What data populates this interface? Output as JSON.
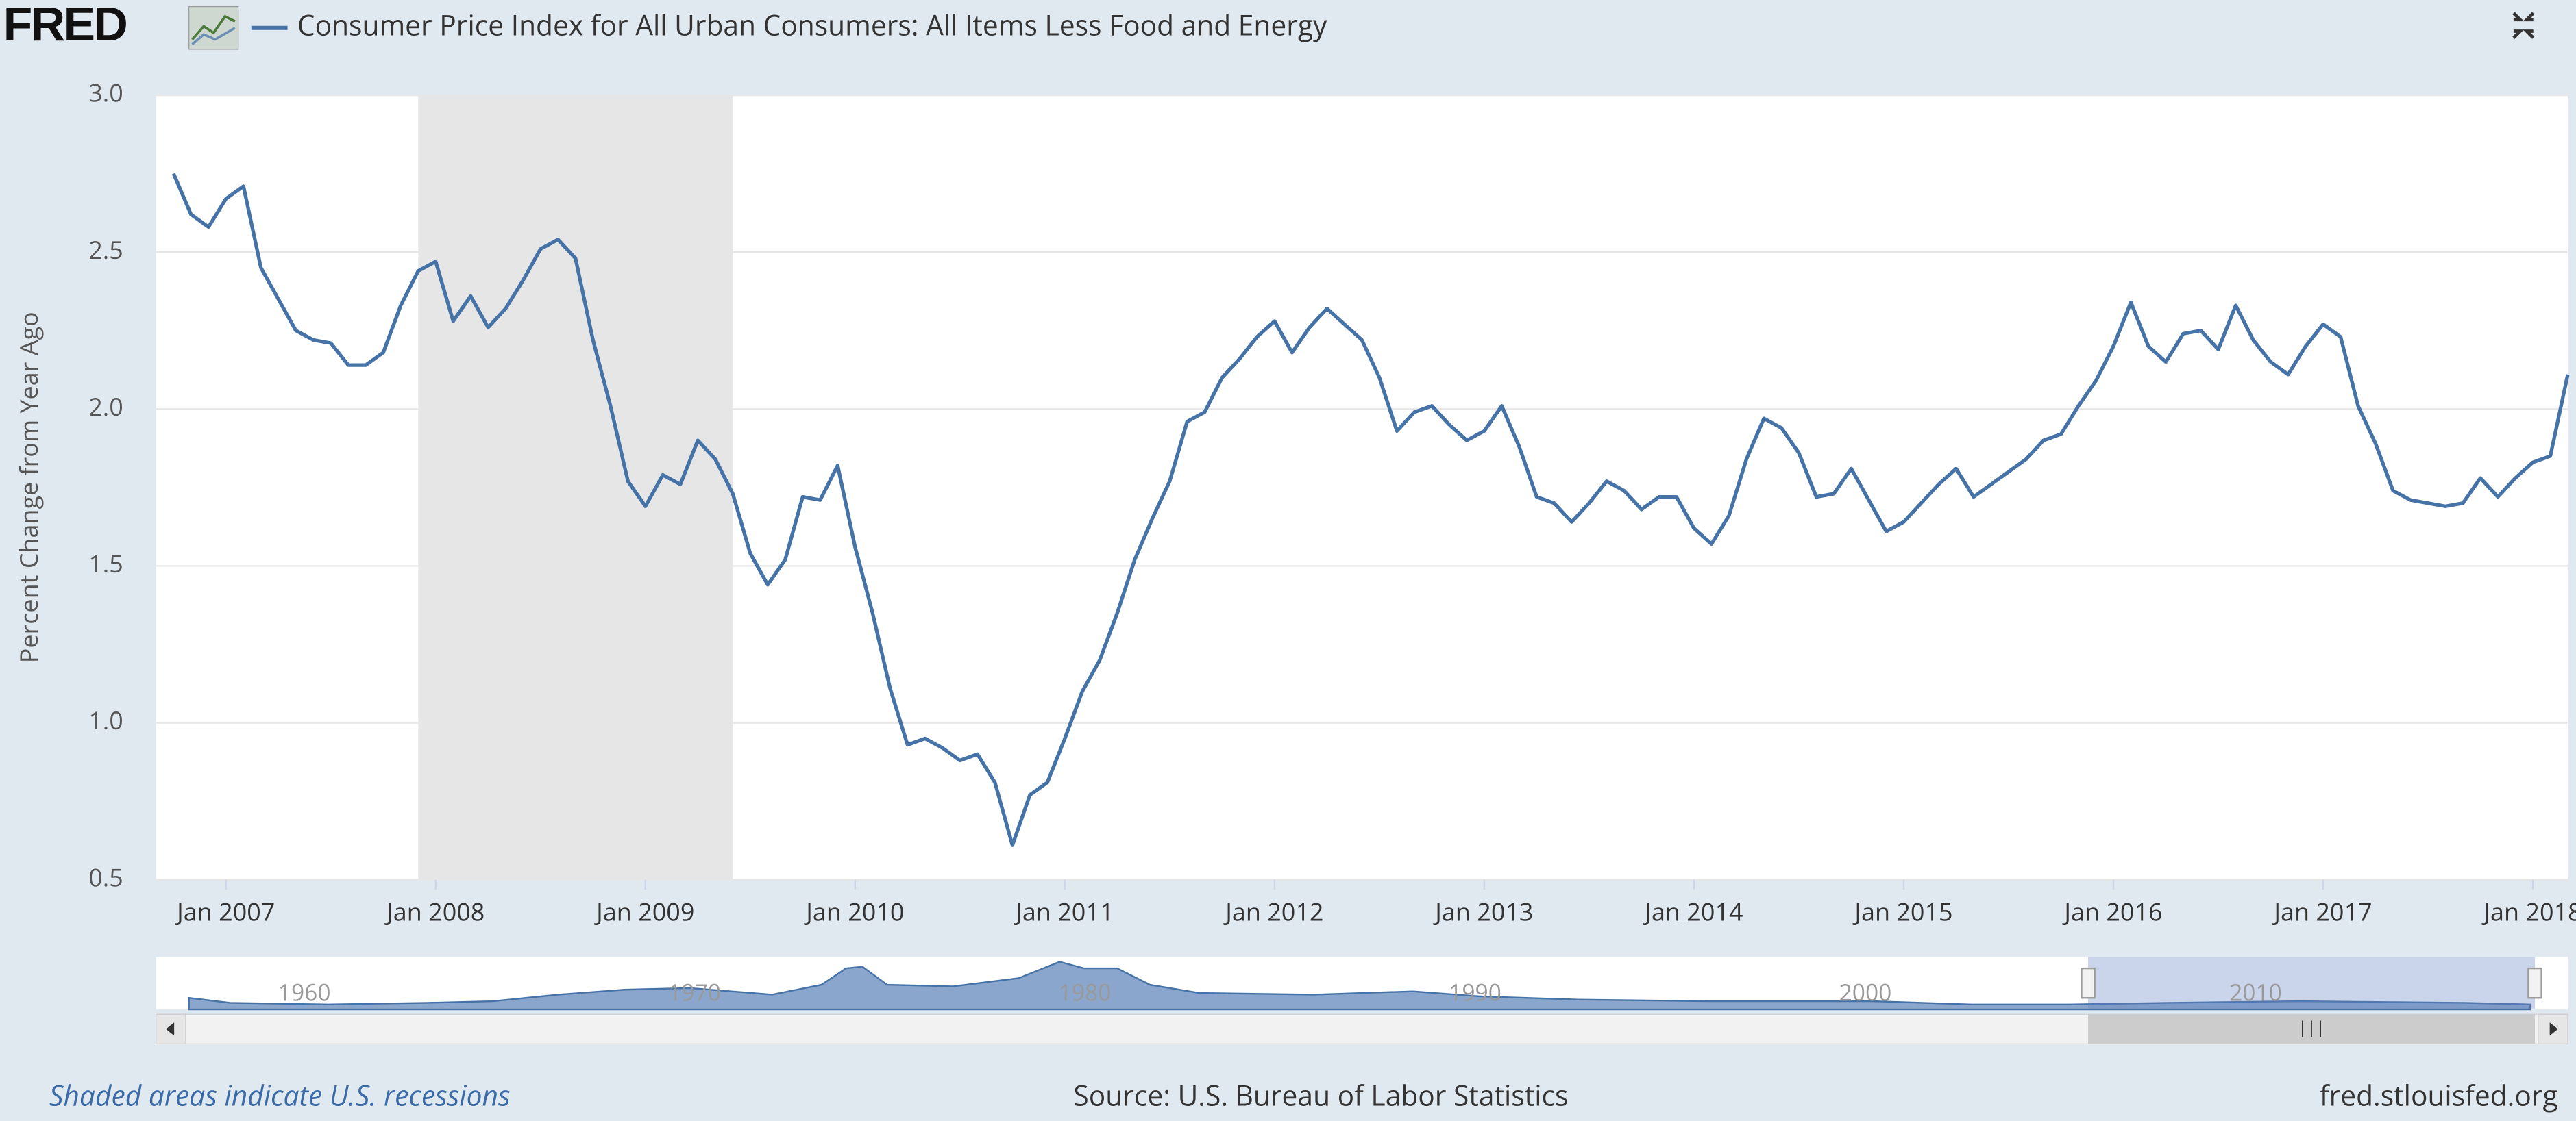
{
  "logo": "FRED",
  "footer": {
    "note": "Shaded areas indicate U.S. recessions",
    "source": "Source: U.S. Bureau of Labor Statistics",
    "site": "fred.stlouisfed.org"
  },
  "chart_data": {
    "type": "line",
    "y_label": "Percent Change from Year Ago",
    "x": [
      "2006-10",
      "2006-11",
      "2006-12",
      "2007-01",
      "2007-02",
      "2007-03",
      "2007-04",
      "2007-05",
      "2007-06",
      "2007-07",
      "2007-08",
      "2007-09",
      "2007-10",
      "2007-11",
      "2007-12",
      "2008-01",
      "2008-02",
      "2008-03",
      "2008-04",
      "2008-05",
      "2008-06",
      "2008-07",
      "2008-08",
      "2008-09",
      "2008-10",
      "2008-11",
      "2008-12",
      "2009-01",
      "2009-02",
      "2009-03",
      "2009-04",
      "2009-05",
      "2009-06",
      "2009-07",
      "2009-08",
      "2009-09",
      "2009-10",
      "2009-11",
      "2009-12",
      "2010-01",
      "2010-02",
      "2010-03",
      "2010-04",
      "2010-05",
      "2010-06",
      "2010-07",
      "2010-08",
      "2010-09",
      "2010-10",
      "2010-11",
      "2010-12",
      "2011-01",
      "2011-02",
      "2011-03",
      "2011-04",
      "2011-05",
      "2011-06",
      "2011-07",
      "2011-08",
      "2011-09",
      "2011-10",
      "2011-11",
      "2011-12",
      "2012-01",
      "2012-02",
      "2012-03",
      "2012-04",
      "2012-05",
      "2012-06",
      "2012-07",
      "2012-08",
      "2012-09",
      "2012-10",
      "2012-11",
      "2012-12",
      "2013-01",
      "2013-02",
      "2013-03",
      "2013-04",
      "2013-05",
      "2013-06",
      "2013-07",
      "2013-08",
      "2013-09",
      "2013-10",
      "2013-11",
      "2013-12",
      "2014-01",
      "2014-02",
      "2014-03",
      "2014-04",
      "2014-05",
      "2014-06",
      "2014-07",
      "2014-08",
      "2014-09",
      "2014-10",
      "2014-11",
      "2014-12",
      "2015-01",
      "2015-02",
      "2015-03",
      "2015-04",
      "2015-05",
      "2015-06",
      "2015-07",
      "2015-08",
      "2015-09",
      "2015-10",
      "2015-11",
      "2015-12",
      "2016-01",
      "2016-02",
      "2016-03",
      "2016-04",
      "2016-05",
      "2016-06",
      "2016-07",
      "2016-08",
      "2016-09",
      "2016-10",
      "2016-11",
      "2016-12",
      "2017-01",
      "2017-02",
      "2017-03",
      "2017-04",
      "2017-05",
      "2017-06",
      "2017-07",
      "2017-08",
      "2017-09",
      "2017-10",
      "2017-11",
      "2017-12",
      "2018-01",
      "2018-02",
      "2018-03"
    ],
    "series": [
      {
        "name": "Consumer Price Index for All Urban Consumers: All Items Less Food and Energy",
        "color": "#4572a7",
        "values": [
          2.75,
          2.62,
          2.58,
          2.67,
          2.71,
          2.45,
          2.35,
          2.25,
          2.22,
          2.21,
          2.14,
          2.14,
          2.18,
          2.33,
          2.44,
          2.47,
          2.28,
          2.36,
          2.26,
          2.32,
          2.41,
          2.51,
          2.54,
          2.48,
          2.22,
          2.01,
          1.77,
          1.69,
          1.79,
          1.76,
          1.9,
          1.84,
          1.73,
          1.54,
          1.44,
          1.52,
          1.72,
          1.71,
          1.82,
          1.56,
          1.35,
          1.11,
          0.93,
          0.95,
          0.92,
          0.88,
          0.9,
          0.81,
          0.61,
          0.77,
          0.81,
          0.95,
          1.1,
          1.2,
          1.35,
          1.52,
          1.65,
          1.77,
          1.96,
          1.99,
          2.1,
          2.16,
          2.23,
          2.28,
          2.18,
          2.26,
          2.32,
          2.27,
          2.22,
          2.1,
          1.93,
          1.99,
          2.01,
          1.95,
          1.9,
          1.93,
          2.01,
          1.88,
          1.72,
          1.7,
          1.64,
          1.7,
          1.77,
          1.74,
          1.68,
          1.72,
          1.72,
          1.62,
          1.57,
          1.66,
          1.84,
          1.97,
          1.94,
          1.86,
          1.72,
          1.73,
          1.81,
          1.71,
          1.61,
          1.64,
          1.7,
          1.76,
          1.81,
          1.72,
          1.76,
          1.8,
          1.84,
          1.9,
          1.92,
          2.01,
          2.09,
          2.2,
          2.34,
          2.2,
          2.15,
          2.24,
          2.25,
          2.19,
          2.33,
          2.22,
          2.15,
          2.11,
          2.2,
          2.27,
          2.23,
          2.01,
          1.89,
          1.74,
          1.71,
          1.7,
          1.69,
          1.7,
          1.78,
          1.72,
          1.78,
          1.83,
          1.85,
          2.11
        ]
      }
    ],
    "xlim": [
      "2006-09",
      "2018-03"
    ],
    "xticks": [
      {
        "value": "2007-01",
        "label": "Jan 2007"
      },
      {
        "value": "2008-01",
        "label": "Jan 2008"
      },
      {
        "value": "2009-01",
        "label": "Jan 2009"
      },
      {
        "value": "2010-01",
        "label": "Jan 2010"
      },
      {
        "value": "2011-01",
        "label": "Jan 2011"
      },
      {
        "value": "2012-01",
        "label": "Jan 2012"
      },
      {
        "value": "2013-01",
        "label": "Jan 2013"
      },
      {
        "value": "2014-01",
        "label": "Jan 2014"
      },
      {
        "value": "2015-01",
        "label": "Jan 2015"
      },
      {
        "value": "2016-01",
        "label": "Jan 2016"
      },
      {
        "value": "2017-01",
        "label": "Jan 2017"
      },
      {
        "value": "2018-01",
        "label": "Jan 2018"
      }
    ],
    "ylim": [
      0.5,
      3
    ],
    "yticks": [
      {
        "value": 0.5,
        "label": "0.5"
      },
      {
        "value": 1,
        "label": "1.0"
      },
      1.5,
      {
        "value": 2,
        "label": "2.0"
      },
      2.5,
      {
        "value": 3,
        "label": "3.0"
      }
    ],
    "grid": true,
    "recessions": [
      {
        "start": "2007-12",
        "end": "2009-06"
      }
    ],
    "navigator": {
      "xlim": [
        1956.2,
        2018.0
      ],
      "labels": [
        1960,
        1970,
        1980,
        1990,
        2000,
        2010
      ]
    }
  }
}
